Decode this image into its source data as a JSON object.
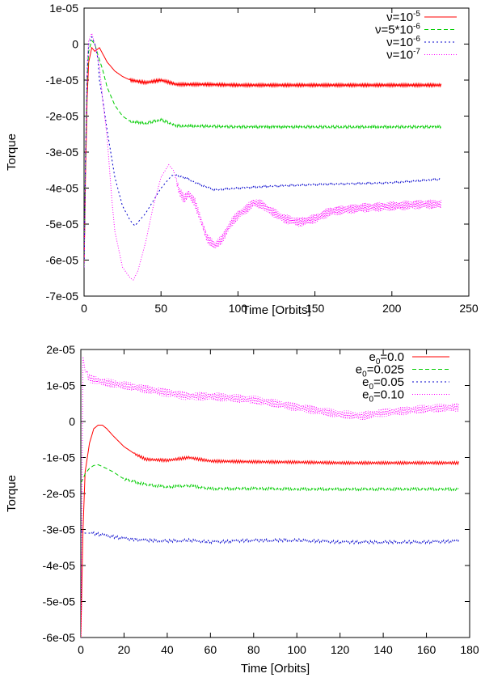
{
  "chart_data": [
    {
      "type": "line",
      "title": "",
      "xlabel": "Time [Orbits]",
      "ylabel": "Torque",
      "xlim": [
        0,
        250
      ],
      "ylim": [
        -7e-05,
        1e-05
      ],
      "xticks": [
        0,
        50,
        100,
        150,
        200,
        250
      ],
      "xtick_labels": [
        "0",
        "50",
        "100",
        "150",
        "200",
        "250"
      ],
      "yticks": [
        1e-05,
        0,
        -1e-05,
        -2e-05,
        -3e-05,
        -4e-05,
        -5e-05,
        -6e-05,
        -7e-05
      ],
      "ytick_labels": [
        "1e-05",
        "0",
        "-1e-05",
        "-2e-05",
        "-3e-05",
        "-4e-05",
        "-5e-05",
        "-6e-05",
        "-7e-05"
      ],
      "grid": false,
      "legend_position": "top-right",
      "series": [
        {
          "name_parts": [
            {
              "t": "ν=10"
            },
            {
              "t": "-5",
              "sup": true
            }
          ],
          "color": "#ff0000",
          "dash": "solid",
          "x": [
            0,
            1,
            2,
            3,
            5,
            7,
            10,
            15,
            20,
            25,
            30,
            40,
            50,
            60,
            80,
            100,
            150,
            200,
            232
          ],
          "y": [
            -6.2e-05,
            -3.5e-05,
            -1.5e-05,
            -5e-06,
            -1e-06,
            -2e-06,
            -1e-06,
            -5e-06,
            -7.5e-06,
            -9e-06,
            -1e-05,
            -1.07e-05,
            -1e-05,
            -1.12e-05,
            -1.12e-05,
            -1.14e-05,
            -1.14e-05,
            -1.14e-05,
            -1.14e-05
          ],
          "noise": 4e-07,
          "noise_start": 30
        },
        {
          "name_parts": [
            {
              "t": "ν=5*10"
            },
            {
              "t": "-6",
              "sup": true
            }
          ],
          "color": "#00cc00",
          "dash": "5,3",
          "x": [
            0,
            1,
            2,
            3,
            5,
            7,
            9,
            12,
            15,
            20,
            25,
            30,
            40,
            50,
            60,
            80,
            100,
            150,
            200,
            232
          ],
          "y": [
            -6.2e-05,
            -3e-05,
            -1e-05,
            -2e-06,
            1e-06,
            0,
            -3e-06,
            -7e-06,
            -1.2e-05,
            -1.7e-05,
            -2e-05,
            -2.15e-05,
            -2.2e-05,
            -2.1e-05,
            -2.27e-05,
            -2.28e-05,
            -2.3e-05,
            -2.3e-05,
            -2.3e-05,
            -2.3e-05
          ],
          "noise": 3e-07,
          "noise_start": 30
        },
        {
          "name_parts": [
            {
              "t": "ν=10"
            },
            {
              "t": "-6",
              "sup": true
            }
          ],
          "color": "#0000cc",
          "dash": "2,3",
          "x": [
            0,
            1,
            2,
            3,
            5,
            7,
            9,
            10,
            12,
            15,
            20,
            25,
            30,
            33,
            40,
            50,
            57,
            60,
            65,
            75,
            85,
            100,
            120,
            150,
            200,
            232
          ],
          "y": [
            -6.2e-05,
            -3e-05,
            -8e-06,
            0,
            2e-06,
            0,
            -4e-06,
            -1e-05,
            -1.5e-05,
            -2.4e-05,
            -3.7e-05,
            -4.5e-05,
            -4.9e-05,
            -5.05e-05,
            -4.7e-05,
            -4e-05,
            -3.65e-05,
            -3.65e-05,
            -3.7e-05,
            -3.9e-05,
            -4.05e-05,
            -4e-05,
            -3.95e-05,
            -3.9e-05,
            -3.85e-05,
            -3.75e-05
          ],
          "noise": 2e-07,
          "noise_start": 60
        },
        {
          "name_parts": [
            {
              "t": "ν=10"
            },
            {
              "t": "-7",
              "sup": true
            }
          ],
          "color": "#ff00ff",
          "dash": "1,2",
          "x": [
            0,
            1,
            2,
            3,
            5,
            7,
            10,
            12,
            15,
            18,
            20,
            25,
            30,
            32,
            35,
            40,
            45,
            50,
            55,
            58,
            62,
            65,
            68,
            72,
            80,
            85,
            90,
            95,
            100,
            105,
            110,
            115,
            120,
            130,
            140,
            150,
            160,
            180,
            200,
            220,
            232
          ],
          "y": [
            -6.2e-05,
            -3e-05,
            -5e-06,
            1e-06,
            3e-06,
            0,
            -6e-06,
            -1.5e-05,
            -2.6e-05,
            -4.3e-05,
            -5.2e-05,
            -6.2e-05,
            -6.5e-05,
            -6.55e-05,
            -6.3e-05,
            -5.5e-05,
            -4.5e-05,
            -3.7e-05,
            -3.35e-05,
            -3.5e-05,
            -4.1e-05,
            -4.3e-05,
            -4.15e-05,
            -4.4e-05,
            -5.4e-05,
            -5.6e-05,
            -5.4e-05,
            -5e-05,
            -4.75e-05,
            -4.6e-05,
            -4.4e-05,
            -4.45e-05,
            -4.6e-05,
            -4.85e-05,
            -4.95e-05,
            -4.85e-05,
            -4.65e-05,
            -4.55e-05,
            -4.5e-05,
            -4.45e-05,
            -4.45e-05
          ],
          "noise": 1.3e-06,
          "noise_start": 60
        }
      ]
    },
    {
      "type": "line",
      "title": "",
      "xlabel": "Time [Orbits]",
      "ylabel": "Torque",
      "xlim": [
        0,
        180
      ],
      "ylim": [
        -6e-05,
        2e-05
      ],
      "xticks": [
        0,
        20,
        40,
        60,
        80,
        100,
        120,
        140,
        160,
        180
      ],
      "xtick_labels": [
        "0",
        "20",
        "40",
        "60",
        "80",
        "100",
        "120",
        "140",
        "160",
        "180"
      ],
      "yticks": [
        2e-05,
        1e-05,
        0,
        -1e-05,
        -2e-05,
        -3e-05,
        -4e-05,
        -5e-05,
        -6e-05
      ],
      "ytick_labels": [
        "2e-05",
        "1e-05",
        "0",
        "-1e-05",
        "-2e-05",
        "-3e-05",
        "-4e-05",
        "-5e-05",
        "-6e-05"
      ],
      "grid": false,
      "legend_position": "top-right",
      "series": [
        {
          "name_parts": [
            {
              "t": "e"
            },
            {
              "t": "0",
              "sub": true
            },
            {
              "t": "=0.0"
            }
          ],
          "color": "#ff0000",
          "dash": "solid",
          "x": [
            0,
            1,
            2,
            4,
            6,
            8,
            10,
            12,
            15,
            20,
            25,
            30,
            40,
            50,
            60,
            80,
            100,
            120,
            150,
            175
          ],
          "y": [
            -6e-05,
            -3e-05,
            -1.4e-05,
            -6e-06,
            -2e-06,
            -1e-06,
            -1e-06,
            -2e-06,
            -4e-06,
            -7e-06,
            -9e-06,
            -1.05e-05,
            -1.08e-05,
            -1e-05,
            -1.1e-05,
            -1.12e-05,
            -1.13e-05,
            -1.15e-05,
            -1.15e-05,
            -1.15e-05
          ],
          "noise": 4e-07,
          "noise_start": 25
        },
        {
          "name_parts": [
            {
              "t": "e"
            },
            {
              "t": "0",
              "sub": true
            },
            {
              "t": "=0.025"
            }
          ],
          "color": "#00cc00",
          "dash": "5,3",
          "x": [
            0,
            1,
            2,
            4,
            6,
            8,
            10,
            15,
            20,
            30,
            40,
            50,
            60,
            80,
            100,
            120,
            150,
            175
          ],
          "y": [
            -1.7e-05,
            -1.6e-05,
            -1.45e-05,
            -1.3e-05,
            -1.22e-05,
            -1.2e-05,
            -1.25e-05,
            -1.4e-05,
            -1.6e-05,
            -1.75e-05,
            -1.82e-05,
            -1.78e-05,
            -1.87e-05,
            -1.86e-05,
            -1.88e-05,
            -1.88e-05,
            -1.88e-05,
            -1.88e-05
          ],
          "noise": 3.5e-07,
          "noise_start": 20
        },
        {
          "name_parts": [
            {
              "t": "e"
            },
            {
              "t": "0",
              "sub": true
            },
            {
              "t": "=0.05"
            }
          ],
          "color": "#0000cc",
          "dash": "2,3",
          "x": [
            0,
            2,
            5,
            10,
            20,
            30,
            40,
            50,
            60,
            80,
            100,
            120,
            140,
            160,
            175
          ],
          "y": [
            -3.05e-05,
            -3.1e-05,
            -3.1e-05,
            -3.15e-05,
            -3.25e-05,
            -3.3e-05,
            -3.32e-05,
            -3.3e-05,
            -3.35e-05,
            -3.3e-05,
            -3.3e-05,
            -3.35e-05,
            -3.35e-05,
            -3.35e-05,
            -3.32e-05
          ],
          "noise": 4e-07,
          "noise_start": 5
        },
        {
          "name_parts": [
            {
              "t": "e"
            },
            {
              "t": "0",
              "sub": true
            },
            {
              "t": "=0.10"
            }
          ],
          "color": "#ff00ff",
          "dash": "1,2",
          "x": [
            0,
            1,
            2,
            4,
            10,
            20,
            30,
            40,
            50,
            60,
            80,
            100,
            120,
            130,
            140,
            150,
            160,
            175
          ],
          "y": [
            -6e-05,
            1.8e-05,
            1.4e-05,
            1.2e-05,
            1.1e-05,
            1e-05,
            9e-06,
            8e-06,
            7e-06,
            7e-06,
            6e-06,
            4e-06,
            2e-06,
            1.5e-06,
            2.5e-06,
            3e-06,
            3.5e-06,
            4e-06
          ],
          "noise": 1.2e-06,
          "noise_start": 3
        }
      ]
    }
  ]
}
